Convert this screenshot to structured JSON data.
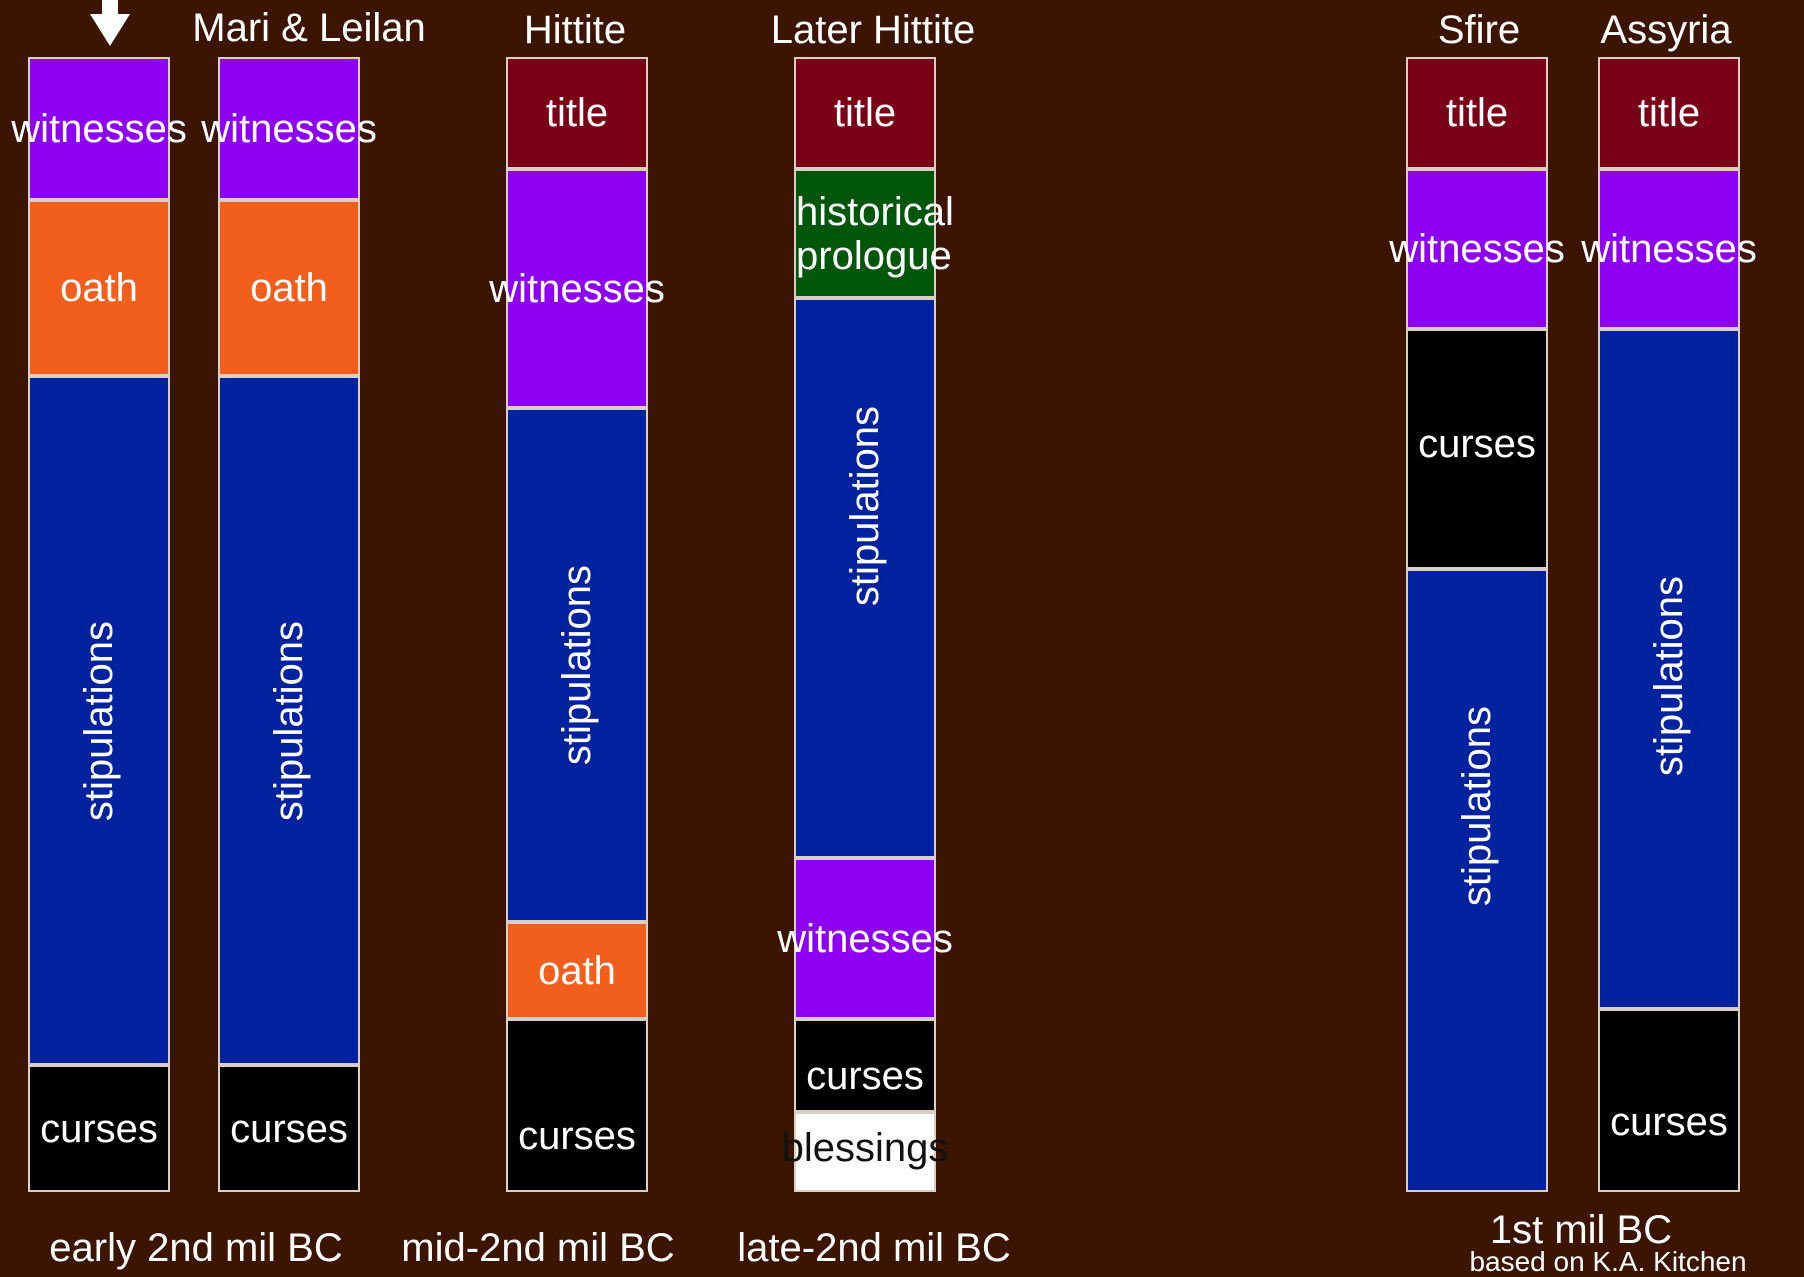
{
  "colors": {
    "background": "#3c1402",
    "title": "#7a0018",
    "witnesses": "#8e00f4",
    "oath": "#f25e1c",
    "stipulations": "#00229e",
    "curses": "#000000",
    "historical_prologue": "#00560a",
    "blessings": "#ffffff",
    "border": "#d8d0c8"
  },
  "column_titles": {
    "mari_leilan": "Mari & Leilan",
    "hittite": "Hittite",
    "later_hittite": "Later Hittite",
    "sfire": "Sfire",
    "assyria": "Assyria"
  },
  "era_labels": {
    "early": "early 2nd mil BC",
    "mid": "mid-2nd mil BC",
    "late": "late-2nd mil BC",
    "first": "1st mil BC"
  },
  "credit": "based on K.A. Kitchen",
  "columns": {
    "c1": [
      {
        "label": "witnesses",
        "type": "witnesses"
      },
      {
        "label": "oath",
        "type": "oath"
      },
      {
        "label": "stipulations",
        "type": "stipulations"
      },
      {
        "label": "curses",
        "type": "curses"
      }
    ],
    "c2": [
      {
        "label": "witnesses",
        "type": "witnesses"
      },
      {
        "label": "oath",
        "type": "oath"
      },
      {
        "label": "stipulations",
        "type": "stipulations"
      },
      {
        "label": "curses",
        "type": "curses"
      }
    ],
    "c3": [
      {
        "label": "title",
        "type": "title"
      },
      {
        "label": "witnesses",
        "type": "witnesses"
      },
      {
        "label": "stipulations",
        "type": "stipulations"
      },
      {
        "label": "oath",
        "type": "oath"
      },
      {
        "label": "curses",
        "type": "curses"
      }
    ],
    "c4": [
      {
        "label": "title",
        "type": "title"
      },
      {
        "label": "historical prologue",
        "type": "historical_prologue"
      },
      {
        "label": "stipulations",
        "type": "stipulations"
      },
      {
        "label": "witnesses",
        "type": "witnesses"
      },
      {
        "label": "curses",
        "type": "curses"
      },
      {
        "label": "blessings",
        "type": "blessings"
      }
    ],
    "c5": [
      {
        "label": "title",
        "type": "title"
      },
      {
        "label": "witnesses",
        "type": "witnesses"
      },
      {
        "label": "curses",
        "type": "curses"
      },
      {
        "label": "stipulations",
        "type": "stipulations"
      }
    ],
    "c6": [
      {
        "label": "title",
        "type": "title"
      },
      {
        "label": "witnesses",
        "type": "witnesses"
      },
      {
        "label": "stipulations",
        "type": "stipulations"
      },
      {
        "label": "curses",
        "type": "curses"
      }
    ]
  }
}
